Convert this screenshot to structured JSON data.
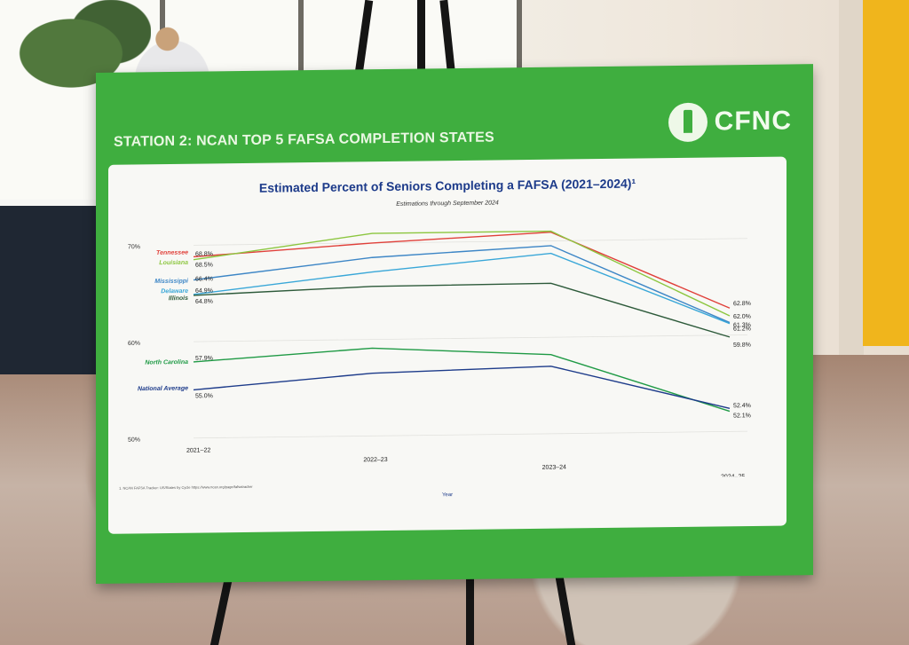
{
  "board": {
    "station_title": "STATION 2: NCAN TOP 5 FAFSA COMPLETION STATES",
    "logo_text": "CFNC",
    "logo_icon": "lighthouse-icon"
  },
  "chart_data": {
    "type": "line",
    "title": "Estimated Percent of Seniors Completing a FAFSA (2021–2024)¹",
    "subtitle": "Estimations through September 2024",
    "xlabel": "Year",
    "ylabel": "",
    "footnote": "1. NCAN FAFSA Tracker: US/States by Cycle https://www.ncan.org/page/fafsatracker",
    "categories": [
      "2021–22",
      "2022–23",
      "2023–24",
      "2024–25"
    ],
    "y_ticks": [
      "70%",
      "60%",
      "50%"
    ],
    "ylim": [
      49,
      72
    ],
    "grid": true,
    "series": [
      {
        "name": "Tennessee",
        "color": "#e0403a",
        "values": [
          68.8,
          70.0,
          70.9,
          62.8
        ],
        "start_label": "68.8%",
        "end_label": "62.8%"
      },
      {
        "name": "Louisiana",
        "color": "#8cc63f",
        "values": [
          68.5,
          71.0,
          71.0,
          62.0
        ],
        "start_label": "68.5%",
        "end_label": "62.0%"
      },
      {
        "name": "Mississippi",
        "color": "#3d86c6",
        "values": [
          66.4,
          68.5,
          69.5,
          61.3
        ],
        "start_label": "66.4%",
        "end_label": "61.3%"
      },
      {
        "name": "Delaware",
        "color": "#39a7d8",
        "values": [
          64.9,
          67.0,
          68.7,
          61.2
        ],
        "start_label": "64.9%",
        "end_label": "61.2%"
      },
      {
        "name": "Illinois",
        "color": "#2d5a3a",
        "values": [
          64.8,
          65.5,
          65.6,
          59.8
        ],
        "start_label": "64.8%",
        "end_label": "59.8%"
      },
      {
        "name": "North Carolina",
        "color": "#1f9a45",
        "values": [
          57.9,
          59.1,
          58.2,
          52.1
        ],
        "start_label": "57.9%",
        "end_label": "52.1%"
      },
      {
        "name": "National Average",
        "color": "#1d3b8a",
        "values": [
          55.0,
          56.5,
          57.0,
          52.4
        ],
        "start_label": "55.0%",
        "end_label": "52.4%"
      }
    ]
  }
}
